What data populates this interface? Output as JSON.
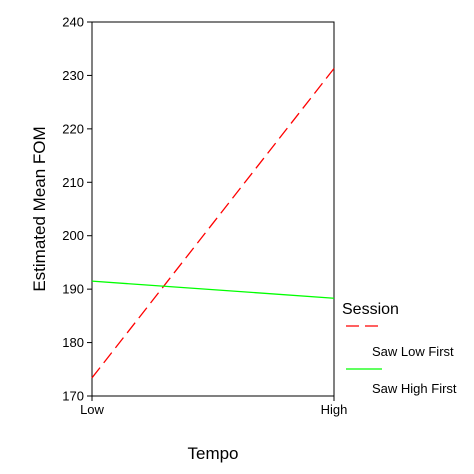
{
  "chart_data": {
    "type": "line",
    "title": "",
    "xlabel": "Tempo",
    "ylabel": "Estimated Mean FOM",
    "categories": [
      "Low",
      "High"
    ],
    "ylim": [
      170,
      240
    ],
    "yticks": [
      170,
      180,
      190,
      200,
      210,
      220,
      230,
      240
    ],
    "grid": false,
    "legend": {
      "title": "Session",
      "placement": "right"
    },
    "series": [
      {
        "name": "Saw Low First",
        "values": [
          173.4,
          231.3
        ],
        "color": "#ff0000",
        "dash": "dashed"
      },
      {
        "name": "Saw High First",
        "values": [
          191.5,
          188.3
        ],
        "color": "#00ff00",
        "dash": "solid"
      }
    ]
  }
}
